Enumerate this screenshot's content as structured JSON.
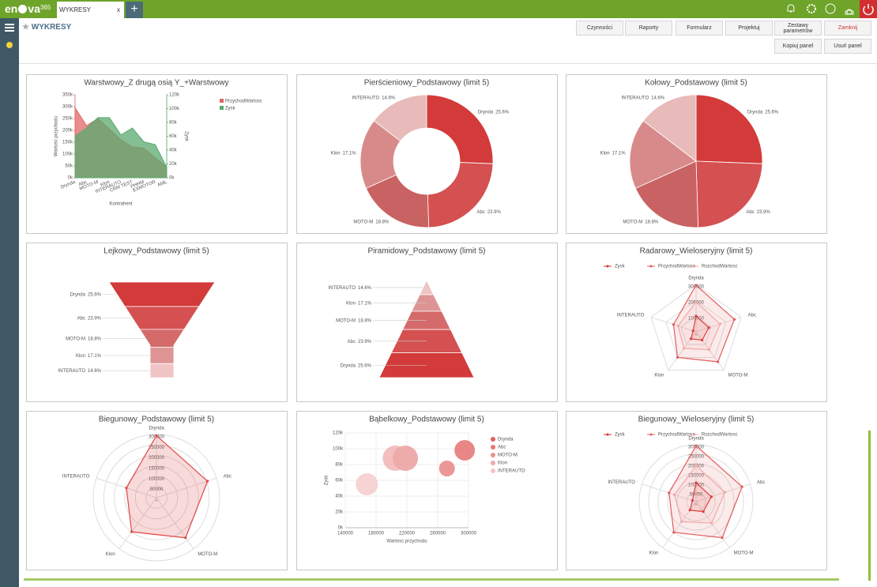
{
  "app": {
    "logo_left": "en",
    "logo_right": "va",
    "logo_suffix": "365",
    "tab": "WYKRESY",
    "tab_close": "x"
  },
  "toolbar": {
    "title": "WYKRESY",
    "buttons": [
      "Czynności",
      "Raporty",
      "Formularz",
      "Projektuj",
      "Zestawy parametrów",
      "Zamknij"
    ],
    "panel_buttons": [
      "Kopiuj panel",
      "Usuń panel"
    ]
  },
  "chart_data": [
    {
      "type": "area",
      "title": "Warstwowy_Z drugą osią Y_+Warstwowy",
      "x_label": "Kontrahent",
      "y_label": "Wartośc przychodu",
      "y2_label": "Zysk",
      "categories": [
        "Drynda",
        "Abc",
        "MOTO-M",
        "Klon",
        "INTERAUTO",
        "CRM TEST",
        "PHHM",
        "EXMOTOR",
        "AML"
      ],
      "series": [
        {
          "name": "PrzychodWartosc",
          "color": "#e06666",
          "values": [
            295000,
            220000,
            250000,
            205000,
            160000,
            130000,
            125000,
            85000,
            45000
          ]
        },
        {
          "name": "Zysk",
          "color": "#5aaa6e",
          "axis": "y2",
          "values": [
            60000,
            72000,
            87000,
            87000,
            62000,
            72000,
            52000,
            48000,
            15000
          ]
        }
      ],
      "ylim": [
        0,
        350000
      ],
      "yticks": [
        {
          "value": 0,
          "label": "0k"
        },
        {
          "value": 50000,
          "label": "50k"
        },
        {
          "value": 100000,
          "label": "100k"
        },
        {
          "value": 150000,
          "label": "150k"
        },
        {
          "value": 200000,
          "label": "200k"
        },
        {
          "value": 250000,
          "label": "250k"
        },
        {
          "value": 300000,
          "label": "300k"
        },
        {
          "value": 350000,
          "label": "350k"
        }
      ],
      "y2lim": [
        0,
        120000
      ],
      "y2ticks": [
        {
          "value": 0,
          "label": "0k"
        },
        {
          "value": 20000,
          "label": "20k"
        },
        {
          "value": 40000,
          "label": "40k"
        },
        {
          "value": 60000,
          "label": "60k"
        },
        {
          "value": 80000,
          "label": "80k"
        },
        {
          "value": 100000,
          "label": "100k"
        },
        {
          "value": 120000,
          "label": "120k"
        }
      ]
    },
    {
      "type": "doughnut",
      "title": "Pierścieniowy_Podstawowy (limit 5)",
      "categories": [
        "Drynda",
        "Abc",
        "MOTO-M",
        "Klon",
        "INTERAUTO"
      ],
      "values": [
        25.6,
        23.9,
        18.8,
        17.1,
        14.6
      ],
      "value_labels": [
        "25.6%",
        "23.9%",
        "18.8%",
        "17.1%",
        "14.6%"
      ],
      "colors": [
        "#d33a3a",
        "#d55050",
        "#c96262",
        "#d88a8a",
        "#e8baba"
      ]
    },
    {
      "type": "pie",
      "title": "Kołowy_Podstawowy (limit 5)",
      "categories": [
        "Drynda",
        "Abc",
        "MOTO-M",
        "Klon",
        "INTERAUTO"
      ],
      "values": [
        25.6,
        23.9,
        18.8,
        17.1,
        14.6
      ],
      "value_labels": [
        "25.6%",
        "23.9%",
        "18.8%",
        "17.1%",
        "14.6%"
      ],
      "colors": [
        "#d33a3a",
        "#d55050",
        "#c96262",
        "#d88a8a",
        "#e8baba"
      ]
    },
    {
      "type": "funnel",
      "title": "Lejkowy_Podstawowy (limit 5)",
      "categories": [
        "Drynda",
        "Abc",
        "MOTO-M",
        "Klon",
        "INTERAUTO"
      ],
      "values": [
        25.6,
        23.9,
        18.8,
        17.1,
        14.6
      ],
      "value_labels": [
        "25.6%",
        "23.9%",
        "18.8%",
        "17.1%",
        "14.6%"
      ],
      "colors": [
        "#d33a3a",
        "#d55050",
        "#d46a6a",
        "#de9494",
        "#f0c4c4"
      ]
    },
    {
      "type": "pyramid",
      "title": "Piramidowy_Podstawowy (limit 5)",
      "categories": [
        "Drynda",
        "Abc",
        "MOTO-M",
        "Klon",
        "INTERAUTO"
      ],
      "values": [
        25.6,
        23.9,
        18.8,
        17.1,
        14.6
      ],
      "value_labels": [
        "25.6%",
        "23.9%",
        "18.8%",
        "17.1%",
        "14.6%"
      ],
      "colors": [
        "#d33a3a",
        "#d55050",
        "#d46a6a",
        "#de9494",
        "#f0c4c4"
      ]
    },
    {
      "type": "radar",
      "title": "Radarowy_Wieloseryjny (limit 5)",
      "categories": [
        "Drynda",
        "Abc",
        "MOTO-M",
        "Klon",
        "INTERAUTO"
      ],
      "series": [
        {
          "name": "Zysk",
          "color": "#d32f2f",
          "values": [
            100000,
            85000,
            65000,
            55000,
            20000
          ]
        },
        {
          "name": "PrzychodWartosc",
          "color": "#e35b5b",
          "values": [
            295000,
            255000,
            235000,
            200000,
            150000
          ]
        },
        {
          "name": "RozchodWartosc",
          "color": "#f0a8a8",
          "values": [
            190000,
            160000,
            140000,
            130000,
            120000
          ]
        }
      ],
      "rlim": [
        0,
        300000
      ],
      "rticks": [
        0,
        100000,
        200000,
        300000
      ]
    },
    {
      "type": "polar",
      "title": "Biegunowy_Podstawowy (limit 5)",
      "categories": [
        "Drynda",
        "Abc",
        "MOTO-M",
        "Klon",
        "INTERAUTO"
      ],
      "values": [
        295000,
        255000,
        235000,
        200000,
        150000
      ],
      "color": "#e04848",
      "rlim": [
        0,
        300000
      ],
      "rticks": [
        0,
        50000,
        100000,
        150000,
        200000,
        250000,
        300000
      ]
    },
    {
      "type": "bubble",
      "title": "Bąbelkowy_Podstawowy (limit 5)",
      "x_label": "Wartosc przychodu",
      "y_label": "Zysk",
      "series": [
        {
          "name": "Drynda",
          "color": "#e15f5f",
          "x": [
            295000
          ],
          "values": [
            98000
          ],
          "sizes": [
            42
          ]
        },
        {
          "name": "Abc",
          "color": "#e57474",
          "x": [
            272000
          ],
          "values": [
            75000
          ],
          "sizes": [
            25
          ]
        },
        {
          "name": "MOTO-M",
          "color": "#ea9090",
          "x": [
            218000
          ],
          "values": [
            88000
          ],
          "sizes": [
            64
          ]
        },
        {
          "name": "Klon",
          "color": "#efa9a9",
          "x": [
            205000
          ],
          "values": [
            88000
          ],
          "sizes": [
            64
          ]
        },
        {
          "name": "INTERAUTO",
          "color": "#f5c4c4",
          "x": [
            168000
          ],
          "values": [
            55000
          ],
          "sizes": [
            49
          ]
        }
      ],
      "xlim": [
        140000,
        300000
      ],
      "xticks": [
        140000,
        180000,
        220000,
        260000,
        300000
      ],
      "ylim": [
        0,
        120000
      ],
      "yticks": [
        {
          "value": 0,
          "label": "0k"
        },
        {
          "value": 20000,
          "label": "20k"
        },
        {
          "value": 40000,
          "label": "40k"
        },
        {
          "value": 60000,
          "label": "60k"
        },
        {
          "value": 80000,
          "label": "80k"
        },
        {
          "value": 100000,
          "label": "100k"
        },
        {
          "value": 120000,
          "label": "120k"
        }
      ],
      "grid": true
    },
    {
      "type": "polar",
      "title": "Biegunowy_Wieloseryjny (limit 5)",
      "categories": [
        "Drynda",
        "Abc",
        "MOTO-M",
        "Klon",
        "INTERAUTO"
      ],
      "series": [
        {
          "name": "Zysk",
          "color": "#d32f2f",
          "values": [
            100000,
            85000,
            65000,
            55000,
            20000
          ]
        },
        {
          "name": "PrzychodWartosc",
          "color": "#e35b5b",
          "values": [
            295000,
            255000,
            235000,
            200000,
            150000
          ]
        },
        {
          "name": "RozchodWartosc",
          "color": "#f0a8a8",
          "values": [
            190000,
            160000,
            140000,
            130000,
            120000
          ]
        }
      ],
      "rlim": [
        0,
        300000
      ],
      "rticks": [
        0,
        50000,
        100000,
        150000,
        200000,
        250000,
        300000
      ]
    }
  ]
}
